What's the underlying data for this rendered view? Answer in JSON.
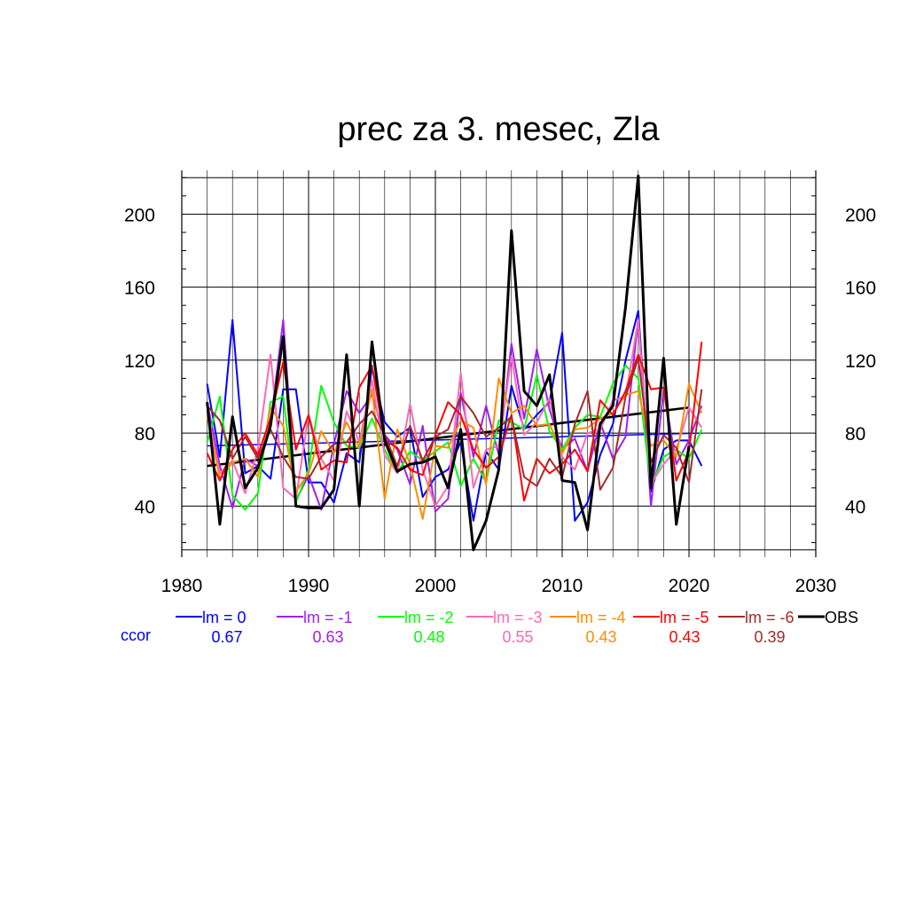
{
  "chart_data": {
    "type": "line",
    "title": "prec za 3. mesec, Zla",
    "xlabel": "",
    "ylabel": "",
    "xlim": [
      1980,
      2030
    ],
    "ylim": [
      12,
      224
    ],
    "x_ticks": [
      1980,
      1990,
      2000,
      2010,
      2020,
      2030
    ],
    "y_ticks": [
      40,
      80,
      120,
      160,
      200
    ],
    "grid": true,
    "legend_position": "bottom",
    "ccor_label": "ccor",
    "x": [
      1982,
      1983,
      1984,
      1985,
      1986,
      1987,
      1988,
      1989,
      1990,
      1991,
      1992,
      1993,
      1994,
      1995,
      1996,
      1997,
      1998,
      1999,
      2000,
      2001,
      2002,
      2003,
      2004,
      2005,
      2006,
      2007,
      2008,
      2009,
      2010,
      2011,
      2012,
      2013,
      2014,
      2015,
      2016,
      2017,
      2018,
      2019,
      2020,
      2021
    ],
    "series": [
      {
        "name": "lm = 0",
        "color": "#0000ff",
        "ccor": "0.67",
        "trend": [
          73,
          80
        ],
        "values": [
          107,
          67,
          142,
          58,
          62,
          55,
          104,
          104,
          53,
          53,
          42,
          69,
          64,
          116,
          86,
          78,
          83,
          45,
          56,
          60,
          75,
          32,
          70,
          60,
          106,
          82,
          90,
          97,
          135,
          32,
          42,
          68,
          85,
          120,
          147,
          48,
          71,
          76,
          76,
          62
        ]
      },
      {
        "name": "lm = -1",
        "color": "#a020f0",
        "ccor": "0.63",
        "trend": null,
        "values": [
          97,
          62,
          39,
          66,
          62,
          85,
          142,
          43,
          57,
          38,
          74,
          103,
          91,
          101,
          79,
          71,
          52,
          84,
          37,
          44,
          102,
          67,
          95,
          68,
          129,
          88,
          126,
          93,
          71,
          77,
          59,
          86,
          66,
          78,
          143,
          40,
          104,
          63,
          76,
          95
        ]
      },
      {
        "name": "lm = -2",
        "color": "#00ff00",
        "ccor": "0.48",
        "trend": null,
        "values": [
          75,
          100,
          46,
          38,
          47,
          97,
          100,
          42,
          60,
          106,
          86,
          73,
          72,
          88,
          71,
          58,
          70,
          65,
          70,
          75,
          51,
          66,
          53,
          87,
          86,
          82,
          112,
          81,
          71,
          83,
          90,
          89,
          107,
          117,
          110,
          51,
          67,
          71,
          66,
          82
        ]
      },
      {
        "name": "lm = -3",
        "color": "#ff69b4",
        "ccor": "0.55",
        "trend": null,
        "values": [
          92,
          58,
          65,
          47,
          71,
          123,
          50,
          44,
          90,
          66,
          54,
          92,
          75,
          109,
          68,
          58,
          96,
          60,
          40,
          51,
          113,
          50,
          71,
          73,
          122,
          79,
          86,
          99,
          67,
          60,
          80,
          82,
          98,
          100,
          142,
          52,
          63,
          71,
          94,
          83
        ]
      },
      {
        "name": "lm = -4",
        "color": "#ff8c00",
        "ccor": "0.43",
        "trend": null,
        "values": [
          90,
          55,
          64,
          66,
          56,
          94,
          84,
          48,
          58,
          81,
          69,
          86,
          72,
          104,
          44,
          82,
          63,
          33,
          73,
          72,
          87,
          83,
          52,
          110,
          91,
          95,
          84,
          85,
          69,
          82,
          83,
          88,
          91,
          101,
          103,
          73,
          76,
          67,
          107,
          91
        ]
      },
      {
        "name": "lm = -5",
        "color": "#ff0000",
        "ccor": "0.43",
        "trend": null,
        "values": [
          69,
          54,
          71,
          80,
          68,
          88,
          119,
          71,
          90,
          60,
          65,
          64,
          105,
          117,
          76,
          72,
          60,
          57,
          79,
          97,
          90,
          71,
          61,
          67,
          90,
          43,
          66,
          58,
          63,
          71,
          59,
          98,
          90,
          103,
          123,
          104,
          105,
          54,
          70,
          130
        ]
      },
      {
        "name": "lm = -6",
        "color": "#a52a2a",
        "ccor": "0.39",
        "trend": null,
        "values": [
          95,
          87,
          66,
          78,
          66,
          82,
          67,
          56,
          55,
          67,
          74,
          75,
          85,
          92,
          79,
          62,
          84,
          65,
          78,
          82,
          100,
          91,
          78,
          83,
          89,
          56,
          51,
          66,
          56,
          85,
          103,
          49,
          61,
          100,
          121,
          64,
          79,
          72,
          53,
          104
        ]
      },
      {
        "name": "OBS",
        "color": "#000000",
        "ccor": "",
        "trend": [
          62,
          94
        ],
        "values": [
          97,
          30,
          89,
          50,
          61,
          84,
          133,
          40,
          39,
          39,
          49,
          123,
          40,
          130,
          76,
          59,
          63,
          64,
          67,
          50,
          82,
          16,
          32,
          60,
          191,
          103,
          95,
          112,
          54,
          53,
          27,
          85,
          95,
          149,
          221,
          50,
          121,
          30,
          73,
          null
        ]
      }
    ]
  }
}
